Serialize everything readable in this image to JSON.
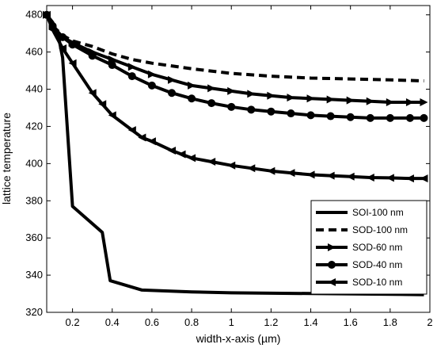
{
  "chart_data": {
    "type": "line",
    "xlabel": "width-x-axis (µm)",
    "ylabel": "lattice temperature",
    "xlim": [
      0.07,
      2.0
    ],
    "ylim": [
      320,
      485
    ],
    "x_ticks": [
      "0.2",
      "0.4",
      "0.6",
      "0.8",
      "1",
      "1.2",
      "1.4",
      "1.6",
      "1.8",
      "2"
    ],
    "y_ticks": [
      "320",
      "340",
      "360",
      "380",
      "400",
      "420",
      "440",
      "460",
      "480"
    ],
    "x_tick_values": [
      0.2,
      0.4,
      0.6,
      0.8,
      1.0,
      1.2,
      1.4,
      1.6,
      1.8,
      2.0
    ],
    "y_tick_values": [
      320,
      340,
      360,
      380,
      400,
      420,
      440,
      460,
      480
    ],
    "legend_position": "lower-right",
    "grid": false,
    "series": [
      {
        "name": "SOI-100 nm",
        "style": "solid",
        "marker": "none",
        "x": [
          0.07,
          0.1,
          0.13,
          0.15,
          0.2,
          0.35,
          0.39,
          0.55,
          0.8,
          1.0,
          1.5,
          1.97
        ],
        "y": [
          480,
          476,
          468,
          457,
          377,
          363,
          337,
          332,
          331,
          330.5,
          330,
          329.5
        ]
      },
      {
        "name": "SOD-100 nm",
        "style": "dashed",
        "marker": "none",
        "x": [
          0.07,
          0.1,
          0.15,
          0.2,
          0.3,
          0.4,
          0.5,
          0.6,
          0.8,
          1.0,
          1.2,
          1.4,
          1.6,
          1.8,
          1.97
        ],
        "y": [
          480,
          474,
          469,
          466,
          463,
          459,
          456,
          454,
          451,
          448.5,
          447,
          446,
          445.5,
          445,
          444.5
        ]
      },
      {
        "name": "SOD-60 nm",
        "style": "solid",
        "marker": "triangle-right",
        "x": [
          0.07,
          0.1,
          0.15,
          0.2,
          0.3,
          0.4,
          0.5,
          0.6,
          0.7,
          0.8,
          0.9,
          1.0,
          1.1,
          1.2,
          1.3,
          1.4,
          1.5,
          1.6,
          1.7,
          1.8,
          1.9,
          1.97
        ],
        "y": [
          480,
          474,
          468,
          465,
          460,
          456,
          452,
          448,
          445,
          442,
          440.5,
          439,
          437.5,
          436.5,
          435.5,
          435,
          434.5,
          434,
          433.5,
          433,
          433,
          433
        ]
      },
      {
        "name": "SOD-40 nm",
        "style": "solid",
        "marker": "circle",
        "x": [
          0.07,
          0.1,
          0.15,
          0.2,
          0.3,
          0.4,
          0.5,
          0.6,
          0.7,
          0.8,
          0.9,
          1.0,
          1.1,
          1.2,
          1.3,
          1.4,
          1.5,
          1.6,
          1.7,
          1.8,
          1.9,
          1.97
        ],
        "y": [
          480,
          474,
          468,
          464,
          458,
          453,
          447,
          442,
          438,
          435,
          432.5,
          430.5,
          429,
          428,
          427,
          426,
          425.5,
          425,
          424.5,
          424.5,
          424.5,
          424.5
        ]
      },
      {
        "name": "SOD-10 nm",
        "style": "solid",
        "marker": "triangle-left",
        "x": [
          0.07,
          0.1,
          0.15,
          0.2,
          0.3,
          0.35,
          0.4,
          0.5,
          0.55,
          0.6,
          0.7,
          0.75,
          0.8,
          0.9,
          1.0,
          1.1,
          1.2,
          1.3,
          1.4,
          1.5,
          1.6,
          1.7,
          1.8,
          1.9,
          1.97
        ],
        "y": [
          480,
          472,
          462,
          454,
          438,
          432,
          426,
          418,
          414,
          412,
          407,
          405,
          403,
          401,
          399,
          397.5,
          396,
          395,
          394,
          393.5,
          393,
          392.5,
          392.3,
          392,
          392
        ]
      }
    ]
  }
}
